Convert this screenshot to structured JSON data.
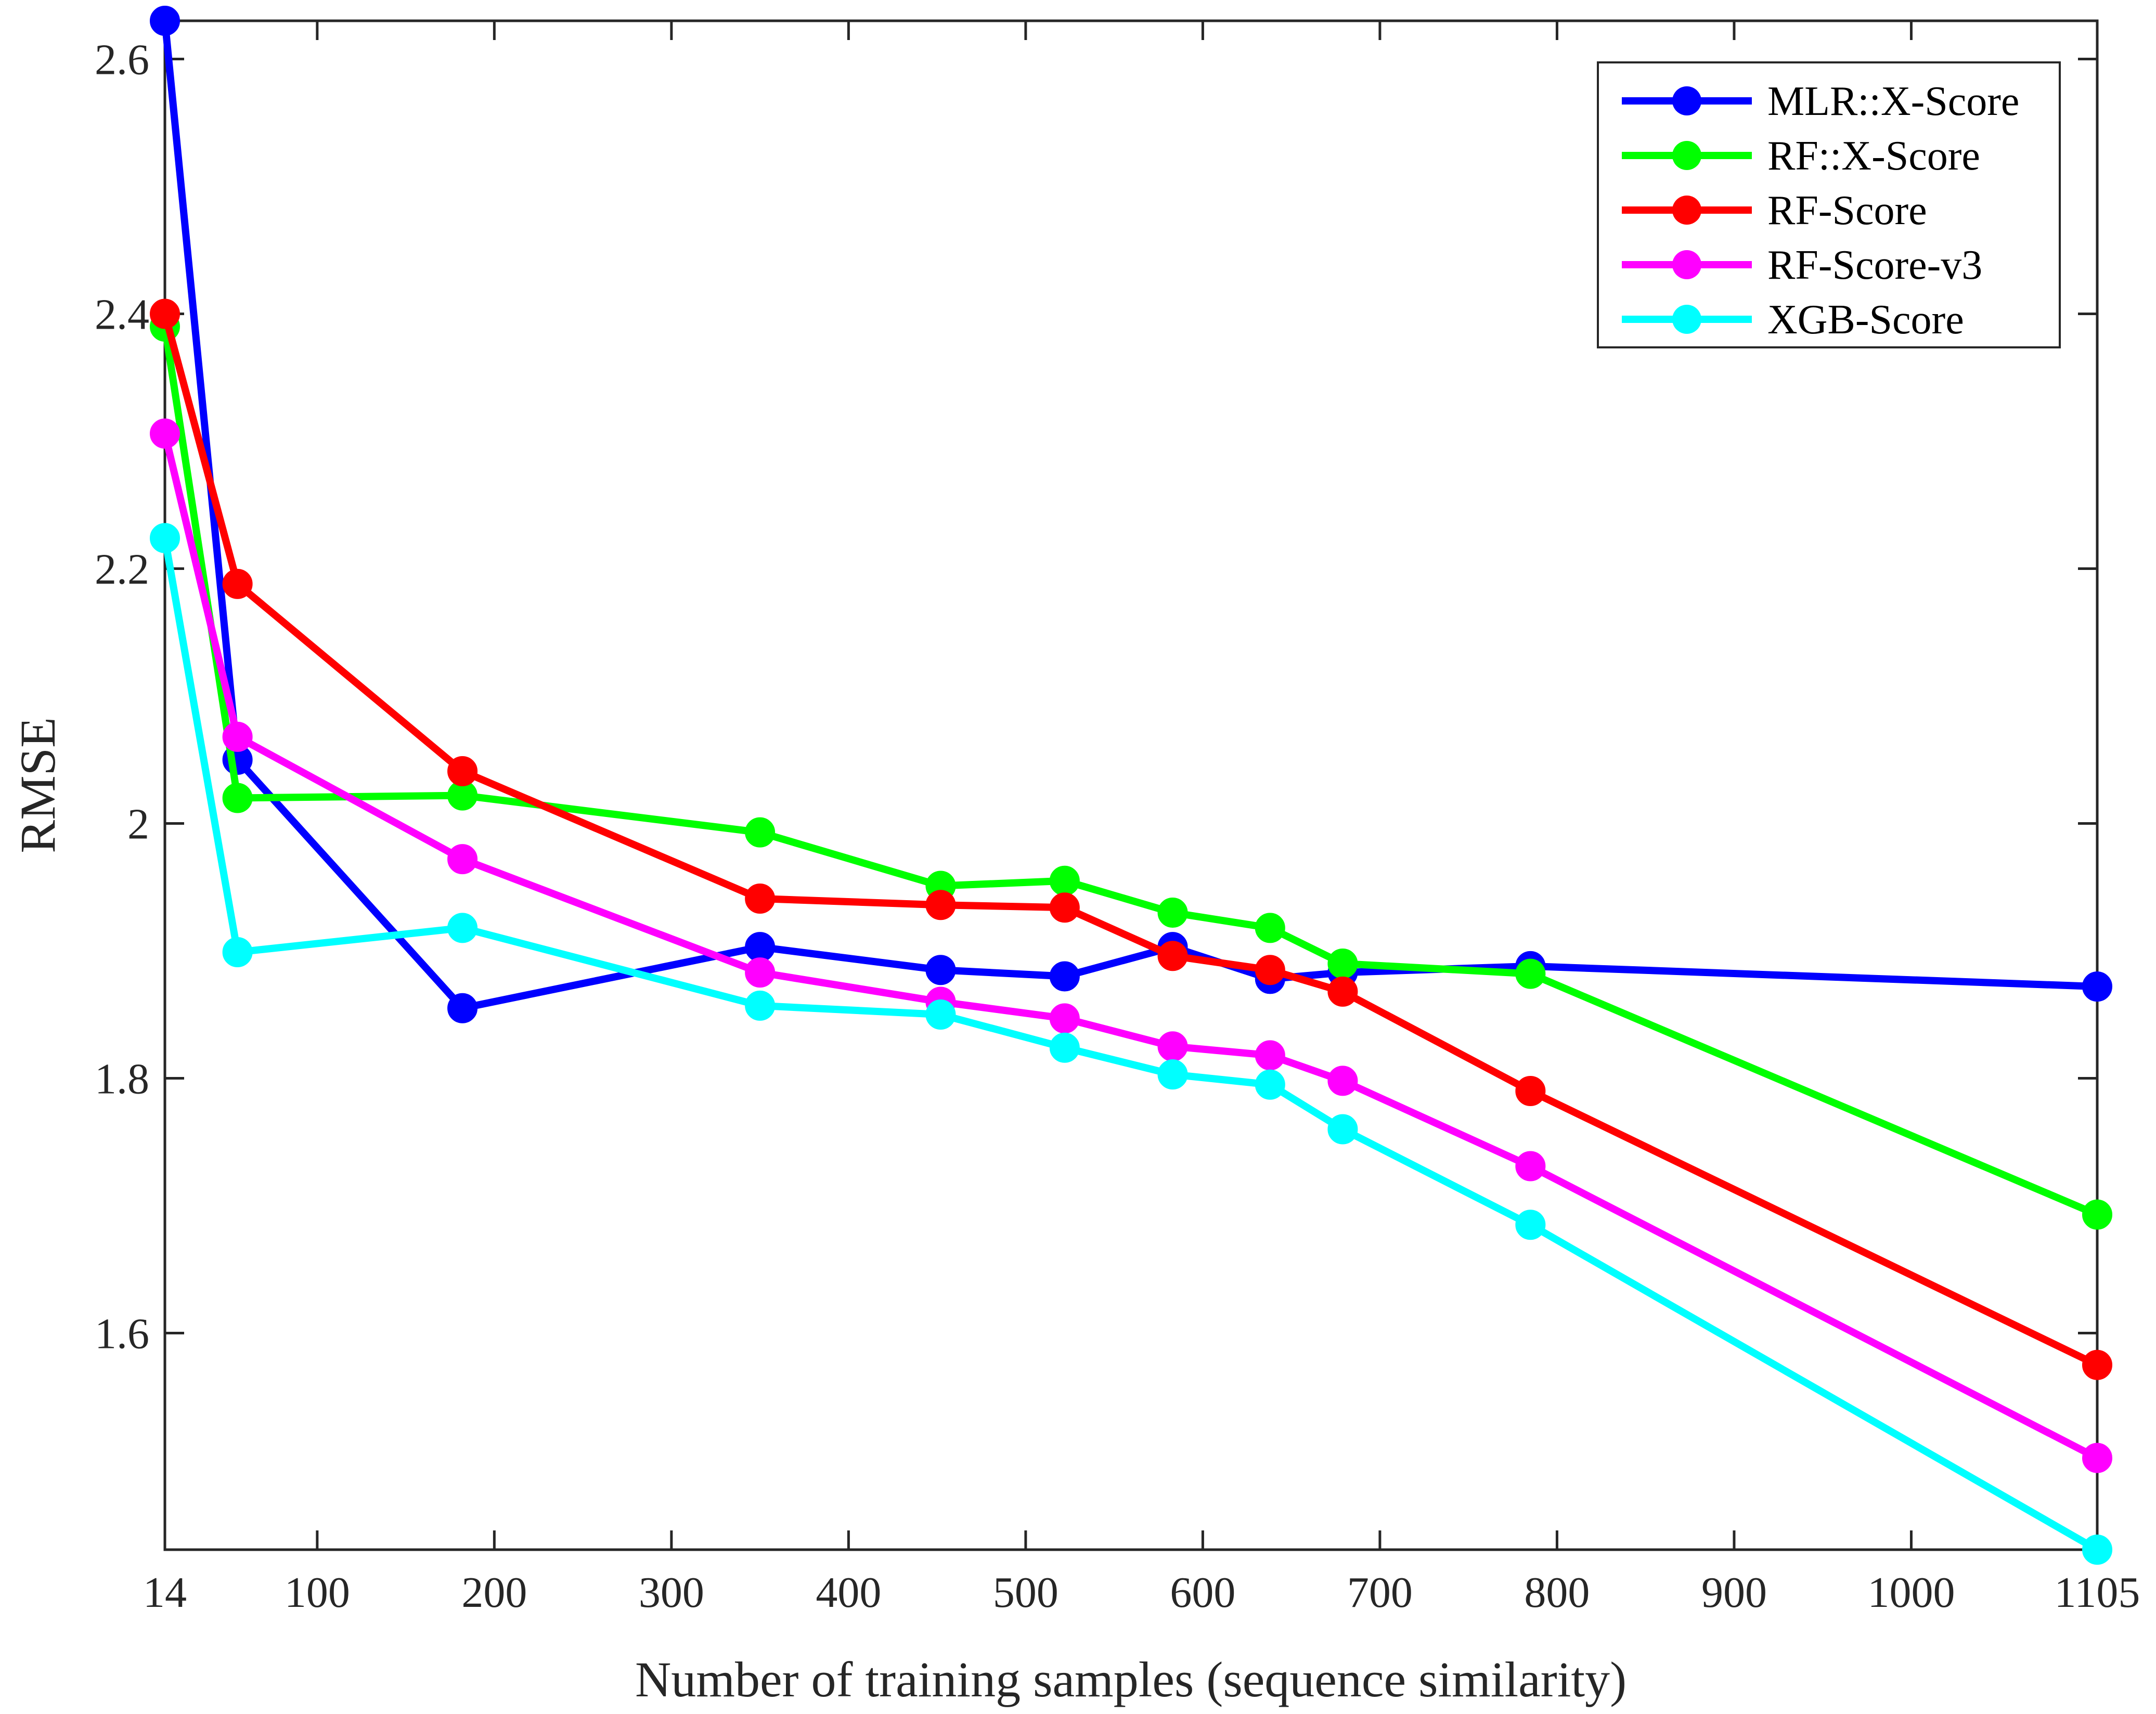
{
  "chart_data": {
    "type": "line",
    "xlabel": "Number of training samples (sequence similarity)",
    "ylabel": "RMSE",
    "xlim": [
      14,
      1105
    ],
    "ylim": [
      1.43,
      2.63
    ],
    "xticks": [
      14,
      100,
      200,
      300,
      400,
      500,
      600,
      700,
      800,
      900,
      1000,
      1105
    ],
    "xtick_labels": [
      "14",
      "100",
      "200",
      "300",
      "400",
      "500",
      "600",
      "700",
      "800",
      "900",
      "1000",
      "1105"
    ],
    "yticks": [
      1.6,
      1.8,
      2.0,
      2.2,
      2.4,
      2.6
    ],
    "ytick_labels": [
      "1.6",
      "1.8",
      "2",
      "2.2",
      "2.4",
      "2.6"
    ],
    "grid": false,
    "legend_position": "top-right",
    "x": [
      14,
      55,
      182,
      350,
      452,
      522,
      583,
      638,
      679,
      785,
      1105
    ],
    "series": [
      {
        "name": "MLR::X-Score",
        "color": "#0000ff",
        "values": [
          2.63,
          2.05,
          1.855,
          1.903,
          1.885,
          1.88,
          1.903,
          1.878,
          1.883,
          1.888,
          1.872
        ]
      },
      {
        "name": "RF::X-Score",
        "color": "#00ff00",
        "values": [
          2.39,
          2.02,
          2.022,
          1.993,
          1.951,
          1.955,
          1.93,
          1.918,
          1.89,
          1.882,
          1.693
        ]
      },
      {
        "name": "RF-Score",
        "color": "#ff0000",
        "values": [
          2.4,
          2.188,
          2.041,
          1.941,
          1.936,
          1.934,
          1.896,
          1.885,
          1.868,
          1.79,
          1.575
        ]
      },
      {
        "name": "RF-Score-v3",
        "color": "#ff00ff",
        "values": [
          2.306,
          2.068,
          1.972,
          1.883,
          1.86,
          1.847,
          1.825,
          1.818,
          1.798,
          1.731,
          1.502
        ]
      },
      {
        "name": "XGB-Score",
        "color": "#00ffff",
        "values": [
          2.224,
          1.899,
          1.918,
          1.857,
          1.85,
          1.824,
          1.803,
          1.795,
          1.76,
          1.685,
          1.43
        ]
      }
    ]
  }
}
